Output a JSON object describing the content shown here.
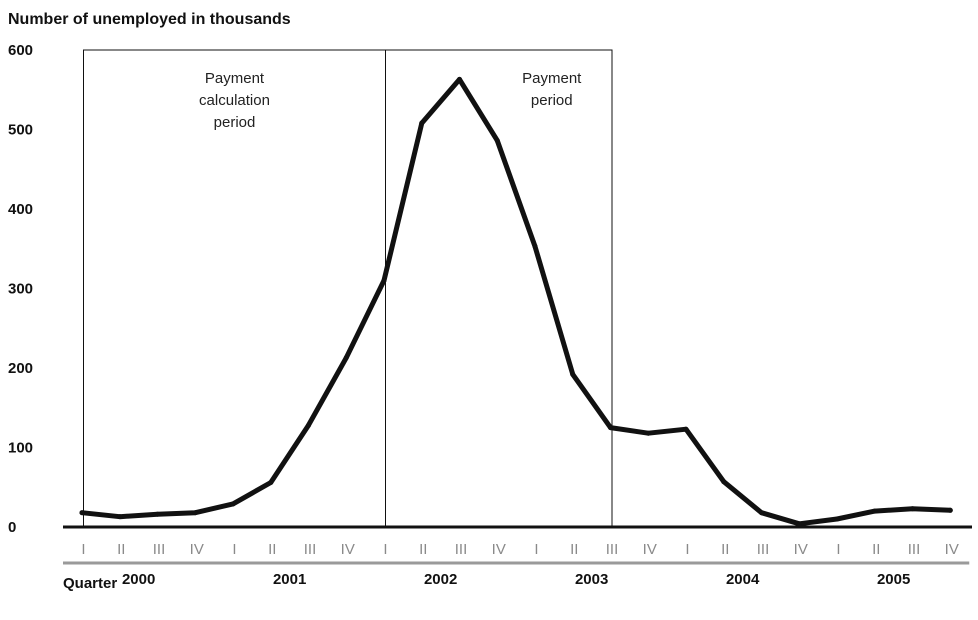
{
  "chart_data": {
    "type": "line",
    "title": "",
    "ylabel": "Number of unemployed in thousands",
    "xlabel": "Quarter",
    "ylim": [
      0,
      600
    ],
    "yticks": [
      0,
      100,
      200,
      300,
      400,
      500,
      600
    ],
    "x": [
      "2000 I",
      "2000 II",
      "2000 III",
      "2000 IV",
      "2001 I",
      "2001 II",
      "2001 III",
      "2001 IV",
      "2002 I",
      "2002 II",
      "2002 III",
      "2002 IV",
      "2003 I",
      "2003 II",
      "2003 III",
      "2003 IV",
      "2004 I",
      "2004 II",
      "2004 III",
      "2004 IV",
      "2005 I",
      "2005 II",
      "2005 III",
      "2005 IV"
    ],
    "quarter_labels": [
      "I",
      "II",
      "III",
      "IV"
    ],
    "years": [
      "2000",
      "2001",
      "2002",
      "2003",
      "2004",
      "2005"
    ],
    "series": [
      {
        "values": [
          18,
          13,
          16,
          18,
          29,
          56,
          128,
          213,
          310,
          508,
          563,
          486,
          353,
          192,
          125,
          118,
          123,
          57,
          18,
          4,
          10,
          20,
          23,
          21
        ]
      }
    ],
    "annotations": [
      {
        "lines": [
          "Payment",
          "calculation",
          "period"
        ]
      },
      {
        "lines": [
          "Payment",
          "period"
        ]
      }
    ],
    "regions": [
      {
        "start_index": 0,
        "end_index": 8
      },
      {
        "start_index": 8,
        "end_index": 14
      }
    ],
    "grid": false,
    "legend": "none",
    "colors": {
      "line": "#111111",
      "axis": "#111111",
      "year_rule": "#9a9a9a",
      "quarter_text": "#8a8a8a"
    }
  }
}
